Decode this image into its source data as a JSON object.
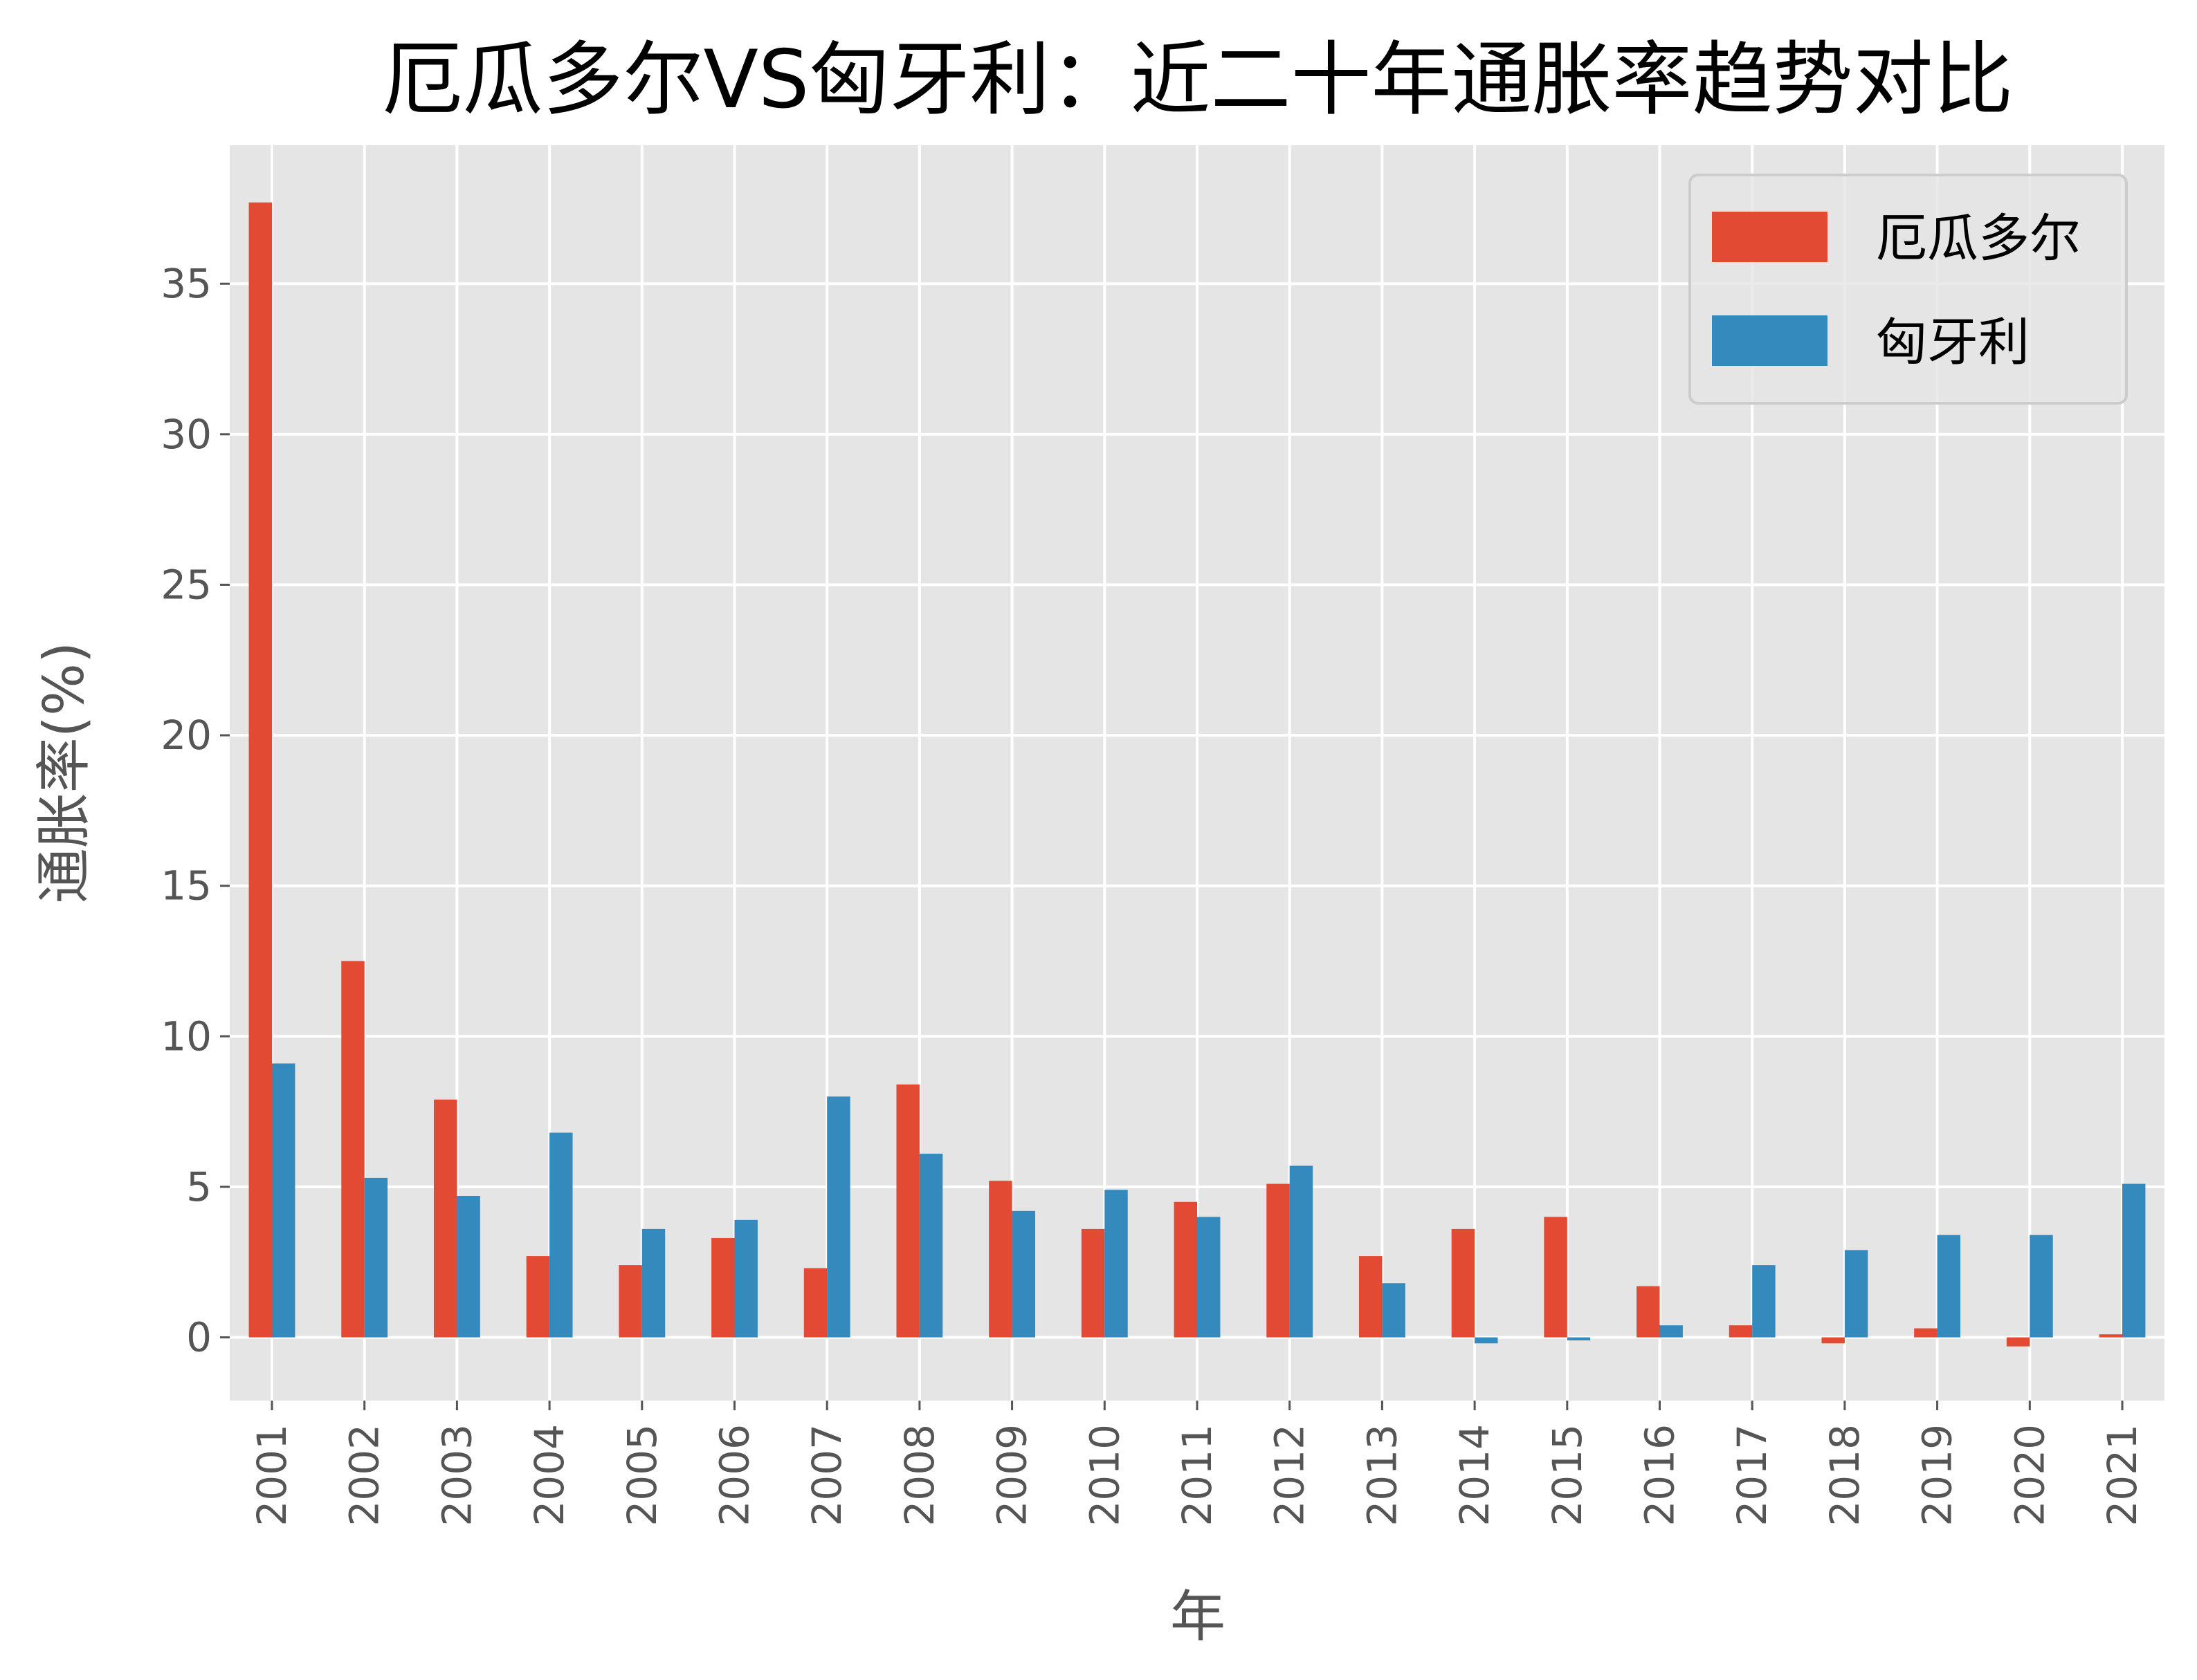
{
  "chart_data": {
    "type": "bar",
    "title": "厄瓜多尔VS匈牙利：近二十年通胀率趋势对比",
    "xlabel": "年",
    "ylabel": "通胀率(%)",
    "categories": [
      "2001",
      "2002",
      "2003",
      "2004",
      "2005",
      "2006",
      "2007",
      "2008",
      "2009",
      "2010",
      "2011",
      "2012",
      "2013",
      "2014",
      "2015",
      "2016",
      "2017",
      "2018",
      "2019",
      "2020",
      "2021"
    ],
    "series": [
      {
        "name": "厄瓜多尔",
        "color": "#E24A33",
        "values": [
          37.7,
          12.5,
          7.9,
          2.7,
          2.4,
          3.3,
          2.3,
          8.4,
          5.2,
          3.6,
          4.5,
          5.1,
          2.7,
          3.6,
          4.0,
          1.7,
          0.4,
          -0.2,
          0.3,
          -0.3,
          0.1
        ]
      },
      {
        "name": "匈牙利",
        "color": "#348ABD",
        "values": [
          9.1,
          5.3,
          4.7,
          6.8,
          3.6,
          3.9,
          8.0,
          6.1,
          4.2,
          4.9,
          4.0,
          5.7,
          1.8,
          -0.2,
          -0.1,
          0.4,
          2.4,
          2.9,
          3.4,
          3.4,
          5.1
        ]
      }
    ],
    "yticks": [
      "0",
      "5",
      "10",
      "15",
      "20",
      "25",
      "30",
      "35"
    ],
    "ylim": [
      -2.1,
      39.6
    ],
    "grid": true,
    "legend": "top-right",
    "background": "#E5E5E5"
  }
}
